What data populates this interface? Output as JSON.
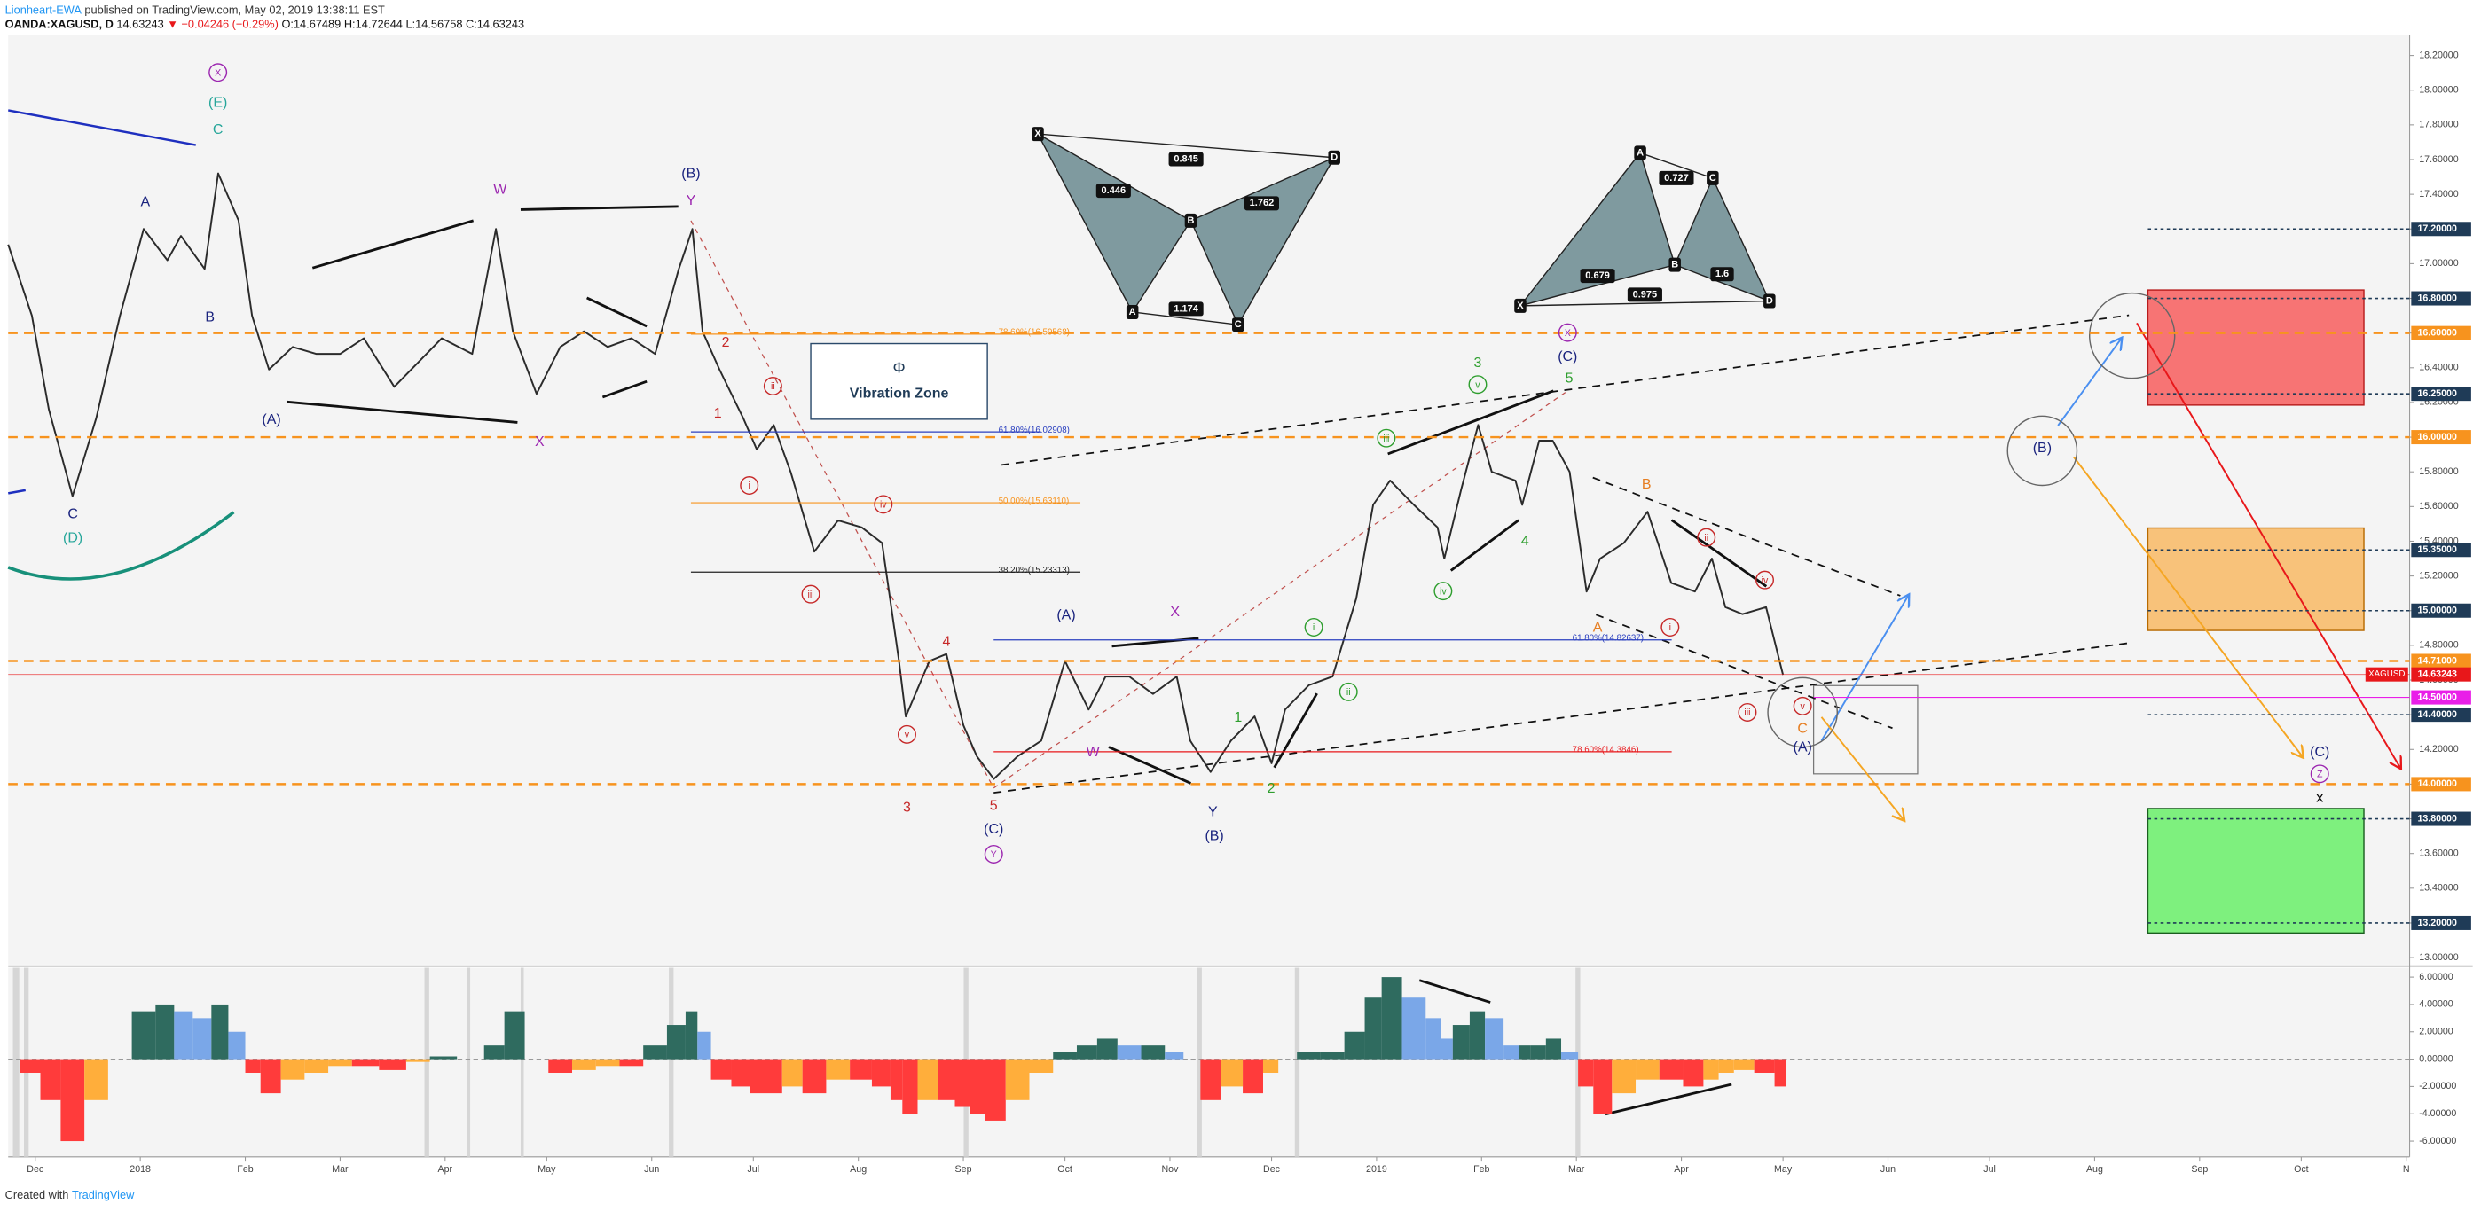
{
  "header": {
    "author": "Lionheart-EWA",
    "published": " published on TradingView.com, May 02, 2019 13:38:11 EST",
    "symbol": "OANDA:XAGUSD, D",
    "last": "14.63243",
    "change": "▼ −0.04246 (−0.29%)",
    "open": "O:14.67489",
    "high": "H:14.72644",
    "low": "L:14.56758",
    "close": "C:14.63243"
  },
  "footer": {
    "text": "Created with",
    "brand": "TradingView"
  },
  "chart_data": [
    {
      "type": "line",
      "x": [
        -8,
        -1,
        4,
        11,
        18,
        25,
        32,
        39,
        43,
        50,
        54,
        60,
        64,
        69,
        76,
        83,
        90,
        97,
        106,
        113,
        120,
        129,
        136,
        141,
        148,
        155,
        162,
        169,
        176,
        183,
        190,
        194,
        197,
        202,
        209,
        213,
        218,
        223,
        230,
        237,
        244,
        250,
        255,
        257,
        264,
        269,
        274,
        278,
        283,
        290,
        297,
        304,
        311,
        316,
        323,
        330,
        337,
        341,
        347,
        353,
        360,
        365,
        369,
        376,
        383,
        390,
        395,
        400,
        407,
        414,
        416,
        421,
        426,
        430,
        437,
        439,
        444,
        448,
        453,
        458,
        462,
        469,
        476,
        483,
        490,
        495,
        499,
        504,
        511,
        516
      ],
      "series": [
        {
          "name": "XAGUSD",
          "color": "#2b2b2b",
          "values": [
            17.11,
            16.7,
            16.16,
            15.66,
            16.11,
            16.7,
            17.2,
            17.02,
            17.16,
            16.97,
            17.52,
            17.25,
            16.7,
            16.39,
            16.52,
            16.48,
            16.48,
            16.57,
            16.29,
            16.43,
            16.57,
            16.48,
            17.2,
            16.61,
            16.25,
            16.52,
            16.61,
            16.52,
            16.57,
            16.48,
            16.97,
            17.2,
            16.61,
            16.39,
            16.11,
            15.93,
            16.07,
            15.8,
            15.34,
            15.52,
            15.48,
            15.39,
            14.71,
            14.39,
            14.71,
            14.75,
            14.34,
            14.16,
            14.03,
            14.16,
            14.25,
            14.71,
            14.43,
            14.62,
            14.62,
            14.52,
            14.62,
            14.25,
            14.07,
            14.25,
            14.39,
            14.12,
            14.43,
            14.57,
            14.62,
            15.07,
            15.61,
            15.75,
            15.61,
            15.48,
            15.3,
            15.7,
            16.07,
            15.8,
            15.75,
            15.61,
            15.98,
            15.98,
            15.8,
            15.11,
            15.3,
            15.39,
            15.57,
            15.16,
            15.11,
            15.3,
            15.02,
            14.98,
            15.02,
            14.63
          ]
        }
      ],
      "xlim": [
        -8,
        701
      ],
      "ylim": [
        12.96,
        18.32
      ],
      "grid": false,
      "yticks": [
        {
          "value": 13.0,
          "label": "13.00000"
        },
        {
          "value": 13.2,
          "label": "13.20000"
        },
        {
          "value": 13.4,
          "label": "13.40000"
        },
        {
          "value": 13.6,
          "label": "13.60000"
        },
        {
          "value": 13.8,
          "label": "13.80000"
        },
        {
          "value": 14.0,
          "label": "14.00000"
        },
        {
          "value": 14.2,
          "label": "14.20000"
        },
        {
          "value": 14.4,
          "label": "14.40000"
        },
        {
          "value": 14.6,
          "label": "14.60000"
        },
        {
          "value": 14.8,
          "label": "14.80000"
        },
        {
          "value": 15.0,
          "label": "15.00000"
        },
        {
          "value": 15.2,
          "label": "15.20000"
        },
        {
          "value": 15.4,
          "label": "15.40000"
        },
        {
          "value": 15.6,
          "label": "15.60000"
        },
        {
          "value": 15.8,
          "label": "15.80000"
        },
        {
          "value": 16.0,
          "label": "16.00000"
        },
        {
          "value": 16.2,
          "label": "16.20000"
        },
        {
          "value": 16.4,
          "label": "16.40000"
        },
        {
          "value": 16.6,
          "label": "16.60000"
        },
        {
          "value": 16.8,
          "label": "16.80000"
        },
        {
          "value": 17.0,
          "label": "17.00000"
        },
        {
          "value": 17.2,
          "label": "17.20000"
        },
        {
          "value": 17.4,
          "label": "17.40000"
        },
        {
          "value": 17.6,
          "label": "17.60000"
        },
        {
          "value": 17.8,
          "label": "17.80000"
        },
        {
          "value": 18.0,
          "label": "18.00000"
        },
        {
          "value": 18.2,
          "label": "18.20000"
        }
      ],
      "level_colors": {
        "fib": "#f7931e",
        "target": "#1f3b57",
        "last": "#e8171a",
        "alert": "#e91ee8"
      },
      "levels": [
        {
          "value": 17.2,
          "label": "17.20000",
          "kind": "target"
        },
        {
          "value": 16.8,
          "label": "16.80000",
          "kind": "target"
        },
        {
          "value": 16.6,
          "label": "16.60000",
          "kind": "fib"
        },
        {
          "value": 16.25,
          "label": "16.25000",
          "kind": "target"
        },
        {
          "value": 16.0,
          "label": "16.00000",
          "kind": "fib"
        },
        {
          "value": 15.35,
          "label": "15.35000",
          "kind": "target"
        },
        {
          "value": 15.0,
          "label": "15.00000",
          "kind": "target"
        },
        {
          "value": 14.71,
          "label": "14.71000",
          "kind": "fib"
        },
        {
          "value": 14.63243,
          "label": "14.63243",
          "kind": "last"
        },
        {
          "value": 14.5,
          "label": "14.50000",
          "kind": "alert"
        },
        {
          "value": 14.4,
          "label": "14.40000",
          "kind": "target"
        },
        {
          "value": 14.0,
          "label": "14.00000",
          "kind": "fib"
        },
        {
          "value": 13.8,
          "label": "13.80000",
          "kind": "target"
        },
        {
          "value": 13.2,
          "label": "13.20000",
          "kind": "target"
        }
      ],
      "fib_labels": [
        {
          "text": "78.60%(16.59568)",
          "color": "#f7931e"
        },
        {
          "text": "61.80%(16.02908)",
          "color": "#2a3fbf"
        },
        {
          "text": "50.00%(15.63110)",
          "color": "#f7931e"
        },
        {
          "text": "38.20%(15.23313)",
          "color": "#222222"
        },
        {
          "text": "61.80%(14.82637)",
          "color": "#2a3fbf"
        },
        {
          "text": "78.60%(14.3846)",
          "color": "#e8171a"
        }
      ],
      "vibration_zone": {
        "symbol": "Φ",
        "label": "Vibration Zone"
      },
      "harmonic_patterns": [
        {
          "points": [
            "X",
            "A",
            "B",
            "C",
            "D"
          ],
          "ratios": [
            "0.446",
            "0.845",
            "1.762",
            "1.174"
          ]
        },
        {
          "points": [
            "X",
            "A",
            "B",
            "C",
            "D"
          ],
          "ratios": [
            "0.727",
            "0.679",
            "1.6",
            "0.975"
          ]
        }
      ],
      "annotations": [
        {
          "text": "X",
          "color": "#9c27b0",
          "circled": true
        },
        {
          "text": "(E)",
          "color": "#26a69a"
        },
        {
          "text": "C",
          "color": "#26a69a"
        },
        {
          "text": "A",
          "color": "#1a237e"
        },
        {
          "text": "B",
          "color": "#1a237e"
        },
        {
          "text": "C",
          "color": "#1a237e"
        },
        {
          "text": "(D)",
          "color": "#26a69a"
        },
        {
          "text": "(A)",
          "color": "#1a237e"
        },
        {
          "text": "W",
          "color": "#9c27b0"
        },
        {
          "text": "X",
          "color": "#9c27b0"
        },
        {
          "text": "(B)",
          "color": "#1a237e"
        },
        {
          "text": "Y",
          "color": "#9c27b0"
        },
        {
          "text": "2",
          "color": "#c62828"
        },
        {
          "text": "1",
          "color": "#c62828"
        },
        {
          "text": "ii",
          "color": "#c62828",
          "circled": true
        },
        {
          "text": "i",
          "color": "#c62828",
          "circled": true
        },
        {
          "text": "iii",
          "color": "#c62828",
          "circled": true
        },
        {
          "text": "iv",
          "color": "#c62828",
          "circled": true
        },
        {
          "text": "v",
          "color": "#c62828",
          "circled": true
        },
        {
          "text": "3",
          "color": "#c62828"
        },
        {
          "text": "4",
          "color": "#c62828"
        },
        {
          "text": "5",
          "color": "#c62828"
        },
        {
          "text": "(C)",
          "color": "#1a237e"
        },
        {
          "text": "Y",
          "color": "#9c27b0",
          "circled": true
        },
        {
          "text": "(A)",
          "color": "#1a237e"
        },
        {
          "text": "X",
          "color": "#9c27b0"
        },
        {
          "text": "W",
          "color": "#9c27b0"
        },
        {
          "text": "Y",
          "color": "#1a237e"
        },
        {
          "text": "(B)",
          "color": "#1a237e"
        },
        {
          "text": "1",
          "color": "#2e9e2e"
        },
        {
          "text": "2",
          "color": "#2e9e2e"
        },
        {
          "text": "i",
          "color": "#2e9e2e",
          "circled": true
        },
        {
          "text": "ii",
          "color": "#2e9e2e",
          "circled": true
        },
        {
          "text": "iii",
          "color": "#2e9e2e",
          "circled": true
        },
        {
          "text": "iv",
          "color": "#2e9e2e",
          "circled": true
        },
        {
          "text": "v",
          "color": "#2e9e2e",
          "circled": true
        },
        {
          "text": "3",
          "color": "#2e9e2e"
        },
        {
          "text": "4",
          "color": "#2e9e2e"
        },
        {
          "text": "5",
          "color": "#2e9e2e"
        },
        {
          "text": "X",
          "color": "#9c27b0",
          "circled": true
        },
        {
          "text": "(C)",
          "color": "#1a237e"
        },
        {
          "text": "B",
          "color": "#e67e22"
        },
        {
          "text": "A",
          "color": "#e67e22"
        },
        {
          "text": "i",
          "color": "#c62828",
          "circled": true
        },
        {
          "text": "ii",
          "color": "#c62828",
          "circled": true
        },
        {
          "text": "iii",
          "color": "#c62828",
          "circled": true
        },
        {
          "text": "iv",
          "color": "#c62828",
          "circled": true
        },
        {
          "text": "v",
          "color": "#c62828",
          "circled": true
        },
        {
          "text": "C",
          "color": "#e67e22"
        },
        {
          "text": "(A)",
          "color": "#1a237e"
        },
        {
          "text": "(B)",
          "color": "#1a237e"
        },
        {
          "text": "(C)",
          "color": "#1a237e"
        },
        {
          "text": "Z",
          "color": "#9c27b0",
          "circled": true
        },
        {
          "text": "x",
          "color": "#000000"
        }
      ]
    },
    {
      "type": "bar",
      "x": [
        -8,
        -1,
        4,
        11,
        18,
        25,
        32,
        39,
        43,
        50,
        54,
        60,
        64,
        69,
        76,
        83,
        90,
        97,
        106,
        113,
        120,
        129,
        136,
        141,
        148,
        155,
        162,
        169,
        176,
        183,
        190,
        194,
        197,
        202,
        209,
        213,
        218,
        223,
        230,
        237,
        244,
        250,
        255,
        257,
        264,
        269,
        274,
        278,
        283,
        290,
        297,
        304,
        311,
        316,
        323,
        330,
        337,
        341,
        347,
        353,
        360,
        365,
        369,
        376,
        383,
        390,
        395,
        400,
        407,
        414,
        416,
        421,
        426,
        430,
        437,
        439,
        444,
        448,
        453,
        458,
        462,
        469,
        476,
        483,
        490,
        495,
        499,
        504,
        511,
        516
      ],
      "values": [
        0,
        -1,
        -3,
        -6,
        -3,
        0,
        3.5,
        4,
        3.5,
        3,
        4,
        2,
        -1,
        -2.5,
        -1.5,
        -1,
        -0.5,
        -0.5,
        -0.8,
        -0.2,
        0.2,
        0,
        1,
        3.5,
        0,
        -1,
        -0.8,
        -0.5,
        -0.5,
        1,
        2.5,
        3.5,
        2,
        -1.5,
        -2,
        -2.5,
        -2.5,
        -2,
        -2.5,
        -1.5,
        -1.5,
        -2,
        -3,
        -4,
        -3,
        -3,
        -3.5,
        -4,
        -4.5,
        -3,
        -1,
        0.5,
        1,
        1.5,
        1,
        1,
        0.5,
        0,
        -3,
        -2,
        -2.5,
        -1,
        0,
        0.5,
        0.5,
        2,
        4.5,
        6,
        4.5,
        3,
        1.5,
        2.5,
        3.5,
        3,
        1,
        1,
        1,
        1.5,
        0.5,
        -2,
        -4,
        -2.5,
        -1.5,
        -1.5,
        -2,
        -1.5,
        -1,
        -0.8,
        -1,
        -2
      ],
      "colors": {
        "pos_up": "#2f6b5f",
        "pos_down": "#7aa7e8",
        "neg_down": "#ff3b3b",
        "neg_up": "#ffae3b"
      },
      "xlim": [
        -8,
        701
      ],
      "ylim": [
        -7.15,
        6.69
      ],
      "yticks": [
        {
          "value": 6,
          "label": "6.00000"
        },
        {
          "value": 4,
          "label": "4.00000"
        },
        {
          "value": 2,
          "label": "2.00000"
        },
        {
          "value": 0,
          "label": "0.00000"
        },
        {
          "value": -2,
          "label": "-2.00000"
        },
        {
          "value": -4,
          "label": "-4.00000"
        },
        {
          "value": -6,
          "label": "-6.00000"
        }
      ],
      "xticks": [
        {
          "value": 0,
          "label": "Dec"
        },
        {
          "value": 31,
          "label": "2018"
        },
        {
          "value": 62,
          "label": "Feb"
        },
        {
          "value": 90,
          "label": "Mar"
        },
        {
          "value": 121,
          "label": "Apr"
        },
        {
          "value": 151,
          "label": "May"
        },
        {
          "value": 182,
          "label": "Jun"
        },
        {
          "value": 212,
          "label": "Jul"
        },
        {
          "value": 243,
          "label": "Aug"
        },
        {
          "value": 274,
          "label": "Sep"
        },
        {
          "value": 304,
          "label": "Oct"
        },
        {
          "value": 335,
          "label": "Nov"
        },
        {
          "value": 365,
          "label": "Dec"
        },
        {
          "value": 396,
          "label": "2019"
        },
        {
          "value": 427,
          "label": "Feb"
        },
        {
          "value": 455,
          "label": "Mar"
        },
        {
          "value": 486,
          "label": "Apr"
        },
        {
          "value": 516,
          "label": "May"
        },
        {
          "value": 547,
          "label": "Jun"
        },
        {
          "value": 577,
          "label": "Jul"
        },
        {
          "value": 608,
          "label": "Aug"
        },
        {
          "value": 639,
          "label": "Sep"
        },
        {
          "value": 669,
          "label": "Oct"
        },
        {
          "value": 700,
          "label": "N"
        }
      ]
    }
  ]
}
